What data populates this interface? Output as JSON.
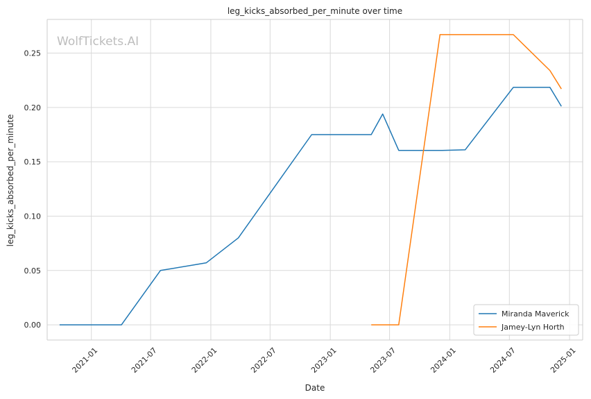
{
  "chart_data": {
    "type": "line",
    "title": "leg_kicks_absorbed_per_minute over time",
    "xlabel": "Date",
    "ylabel": "leg_kicks_absorbed_per_minute",
    "watermark": "WolfTickets.AI",
    "x_ticks": [
      "2021-01",
      "2021-07",
      "2022-01",
      "2022-07",
      "2023-01",
      "2023-07",
      "2024-01",
      "2024-07",
      "2025-01"
    ],
    "y_ticks": [
      "0.00",
      "0.05",
      "0.10",
      "0.15",
      "0.20",
      "0.25"
    ],
    "xlim": [
      "2020-08-19",
      "2025-02-10"
    ],
    "ylim": [
      -0.014,
      0.281
    ],
    "grid": true,
    "legend_position": "lower-right",
    "series": [
      {
        "name": "Miranda Maverick",
        "color": "#1f77b4",
        "points": [
          {
            "x": "2020-09-26",
            "y": 0.0
          },
          {
            "x": "2021-04-03",
            "y": 0.0
          },
          {
            "x": "2021-07-31",
            "y": 0.05
          },
          {
            "x": "2021-12-18",
            "y": 0.057
          },
          {
            "x": "2022-03-26",
            "y": 0.08
          },
          {
            "x": "2022-11-05",
            "y": 0.175
          },
          {
            "x": "2023-05-06",
            "y": 0.175
          },
          {
            "x": "2023-06-10",
            "y": 0.194
          },
          {
            "x": "2023-07-29",
            "y": 0.1605
          },
          {
            "x": "2023-12-09",
            "y": 0.1605
          },
          {
            "x": "2024-02-17",
            "y": 0.161
          },
          {
            "x": "2024-07-13",
            "y": 0.2185
          },
          {
            "x": "2024-11-02",
            "y": 0.2185
          },
          {
            "x": "2024-12-07",
            "y": 0.201
          }
        ]
      },
      {
        "name": "Jamey-Lyn Horth",
        "color": "#ff7f0e",
        "points": [
          {
            "x": "2023-05-06",
            "y": 0.0
          },
          {
            "x": "2023-07-29",
            "y": 0.0
          },
          {
            "x": "2023-12-02",
            "y": 0.267
          },
          {
            "x": "2024-07-13",
            "y": 0.267
          },
          {
            "x": "2024-11-02",
            "y": 0.234
          },
          {
            "x": "2024-12-07",
            "y": 0.217
          }
        ]
      }
    ]
  }
}
